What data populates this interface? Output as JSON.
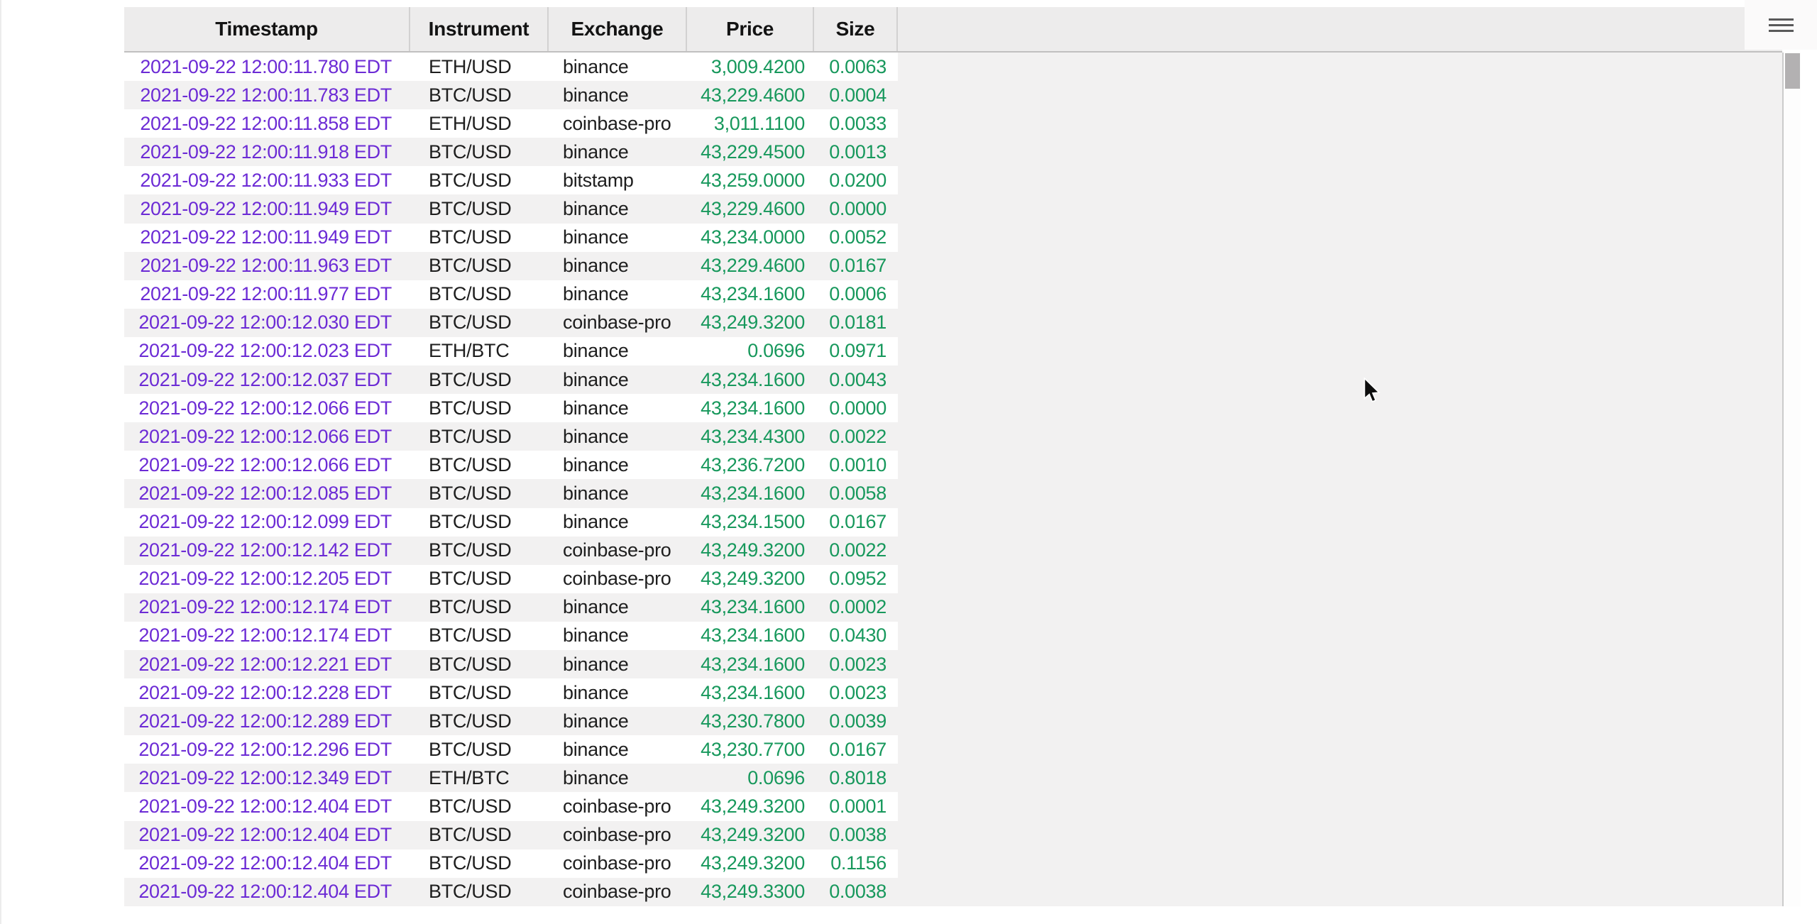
{
  "app": {
    "menu_icon": "hamburger-icon",
    "menu_tooltip_label": "Menu"
  },
  "colors": {
    "page_bg": "#ffffff",
    "header_bg": "#edecec",
    "stripe_bg": "#f2f1f1",
    "blank_bg": "#f2f1f1",
    "header_border": "#c1c0c0",
    "divider": "#d2d1d1",
    "scrollbar_border": "#cbcbcb",
    "thumb": "#b3b1b2",
    "menu_line": "#59595a",
    "text": "#1e1e1e",
    "header_text": "#131313",
    "timestamp": "#6c2bd5",
    "number": "#17985c",
    "edge": "#ececec"
  },
  "scrollbar": {
    "orientation": "vertical",
    "thumb_position": "top"
  },
  "table": {
    "columns": [
      "Timestamp",
      "Instrument",
      "Exchange",
      "Price",
      "Size"
    ],
    "rows": [
      [
        "2021-09-22 12:00:11.780 EDT",
        "ETH/USD",
        "binance",
        "3,009.4200",
        "0.0063"
      ],
      [
        "2021-09-22 12:00:11.783 EDT",
        "BTC/USD",
        "binance",
        "43,229.4600",
        "0.0004"
      ],
      [
        "2021-09-22 12:00:11.858 EDT",
        "ETH/USD",
        "coinbase-pro",
        "3,011.1100",
        "0.0033"
      ],
      [
        "2021-09-22 12:00:11.918 EDT",
        "BTC/USD",
        "binance",
        "43,229.4500",
        "0.0013"
      ],
      [
        "2021-09-22 12:00:11.933 EDT",
        "BTC/USD",
        "bitstamp",
        "43,259.0000",
        "0.0200"
      ],
      [
        "2021-09-22 12:00:11.949 EDT",
        "BTC/USD",
        "binance",
        "43,229.4600",
        "0.0000"
      ],
      [
        "2021-09-22 12:00:11.949 EDT",
        "BTC/USD",
        "binance",
        "43,234.0000",
        "0.0052"
      ],
      [
        "2021-09-22 12:00:11.963 EDT",
        "BTC/USD",
        "binance",
        "43,229.4600",
        "0.0167"
      ],
      [
        "2021-09-22 12:00:11.977 EDT",
        "BTC/USD",
        "binance",
        "43,234.1600",
        "0.0006"
      ],
      [
        "2021-09-22 12:00:12.030 EDT",
        "BTC/USD",
        "coinbase-pro",
        "43,249.3200",
        "0.0181"
      ],
      [
        "2021-09-22 12:00:12.023 EDT",
        "ETH/BTC",
        "binance",
        "0.0696",
        "0.0971"
      ],
      [
        "2021-09-22 12:00:12.037 EDT",
        "BTC/USD",
        "binance",
        "43,234.1600",
        "0.0043"
      ],
      [
        "2021-09-22 12:00:12.066 EDT",
        "BTC/USD",
        "binance",
        "43,234.1600",
        "0.0000"
      ],
      [
        "2021-09-22 12:00:12.066 EDT",
        "BTC/USD",
        "binance",
        "43,234.4300",
        "0.0022"
      ],
      [
        "2021-09-22 12:00:12.066 EDT",
        "BTC/USD",
        "binance",
        "43,236.7200",
        "0.0010"
      ],
      [
        "2021-09-22 12:00:12.085 EDT",
        "BTC/USD",
        "binance",
        "43,234.1600",
        "0.0058"
      ],
      [
        "2021-09-22 12:00:12.099 EDT",
        "BTC/USD",
        "binance",
        "43,234.1500",
        "0.0167"
      ],
      [
        "2021-09-22 12:00:12.142 EDT",
        "BTC/USD",
        "coinbase-pro",
        "43,249.3200",
        "0.0022"
      ],
      [
        "2021-09-22 12:00:12.205 EDT",
        "BTC/USD",
        "coinbase-pro",
        "43,249.3200",
        "0.0952"
      ],
      [
        "2021-09-22 12:00:12.174 EDT",
        "BTC/USD",
        "binance",
        "43,234.1600",
        "0.0002"
      ],
      [
        "2021-09-22 12:00:12.174 EDT",
        "BTC/USD",
        "binance",
        "43,234.1600",
        "0.0430"
      ],
      [
        "2021-09-22 12:00:12.221 EDT",
        "BTC/USD",
        "binance",
        "43,234.1600",
        "0.0023"
      ],
      [
        "2021-09-22 12:00:12.228 EDT",
        "BTC/USD",
        "binance",
        "43,234.1600",
        "0.0023"
      ],
      [
        "2021-09-22 12:00:12.289 EDT",
        "BTC/USD",
        "binance",
        "43,230.7800",
        "0.0039"
      ],
      [
        "2021-09-22 12:00:12.296 EDT",
        "BTC/USD",
        "binance",
        "43,230.7700",
        "0.0167"
      ],
      [
        "2021-09-22 12:00:12.349 EDT",
        "ETH/BTC",
        "binance",
        "0.0696",
        "0.8018"
      ],
      [
        "2021-09-22 12:00:12.404 EDT",
        "BTC/USD",
        "coinbase-pro",
        "43,249.3200",
        "0.0001"
      ],
      [
        "2021-09-22 12:00:12.404 EDT",
        "BTC/USD",
        "coinbase-pro",
        "43,249.3200",
        "0.0038"
      ],
      [
        "2021-09-22 12:00:12.404 EDT",
        "BTC/USD",
        "coinbase-pro",
        "43,249.3200",
        "0.1156"
      ],
      [
        "2021-09-22 12:00:12.404 EDT",
        "BTC/USD",
        "coinbase-pro",
        "43,249.3300",
        "0.0038"
      ]
    ]
  }
}
